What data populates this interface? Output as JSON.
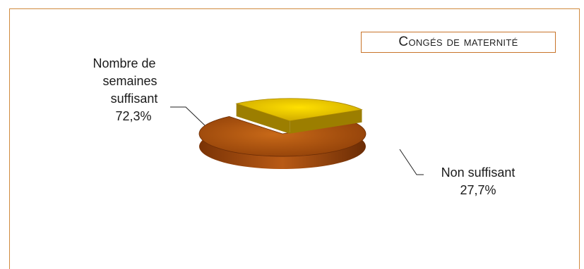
{
  "chart_data": {
    "type": "pie",
    "title": "Congés de maternité",
    "slices": [
      {
        "label": "Nombre de semaines suffisant",
        "percent_label": "72,3%",
        "value": 72.3,
        "color": "#b85410"
      },
      {
        "label": "Non suffisant",
        "percent_label": "27,7%",
        "value": 27.7,
        "color": "#e0b000"
      }
    ],
    "labels": {
      "slice0_lines": [
        "Nombre de",
        "semaines",
        "suffisant",
        "72,3%"
      ],
      "slice1_lines": [
        "Non suffisant",
        "27,7%"
      ]
    }
  }
}
